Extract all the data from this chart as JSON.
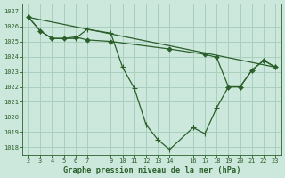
{
  "background_color": "#cce8dc",
  "grid_color": "#aacfbf",
  "line_color": "#2a5f2a",
  "title": "Graphe pression niveau de la mer (hPa)",
  "ylim": [
    1017.5,
    1027.5
  ],
  "yticks": [
    1018,
    1019,
    1020,
    1021,
    1022,
    1023,
    1024,
    1025,
    1026,
    1027
  ],
  "xticks": [
    2,
    3,
    4,
    5,
    6,
    7,
    9,
    10,
    11,
    12,
    13,
    14,
    16,
    17,
    18,
    19,
    20,
    21,
    22,
    23
  ],
  "xlim": [
    1.5,
    23.5
  ],
  "series": [
    {
      "x": [
        2,
        3,
        4,
        5,
        6,
        7,
        9,
        10,
        11,
        12,
        13,
        14,
        16,
        17,
        18,
        19,
        20,
        21,
        22,
        23
      ],
      "y": [
        1026.6,
        1025.7,
        1025.2,
        1025.2,
        1025.2,
        1025.8,
        1025.55,
        1023.3,
        1021.9,
        1019.5,
        1018.5,
        1017.85,
        1019.3,
        1018.9,
        1020.6,
        1022.0,
        1022.0,
        1023.1,
        1023.75,
        1023.3
      ],
      "marker": "+",
      "markersize": 4.5,
      "lw": 0.9
    },
    {
      "x": [
        2,
        23
      ],
      "y": [
        1026.6,
        1023.3
      ],
      "marker": null,
      "markersize": 0,
      "lw": 0.9
    },
    {
      "x": [
        2,
        3,
        4,
        5,
        6,
        7,
        9,
        14,
        17,
        18,
        19,
        20,
        21,
        22,
        23
      ],
      "y": [
        1026.6,
        1025.7,
        1025.2,
        1025.2,
        1025.3,
        1025.1,
        1025.0,
        1024.5,
        1024.15,
        1023.95,
        1022.0,
        1022.0,
        1023.1,
        1023.75,
        1023.3
      ],
      "marker": "D",
      "markersize": 2.5,
      "lw": 0.9
    }
  ]
}
